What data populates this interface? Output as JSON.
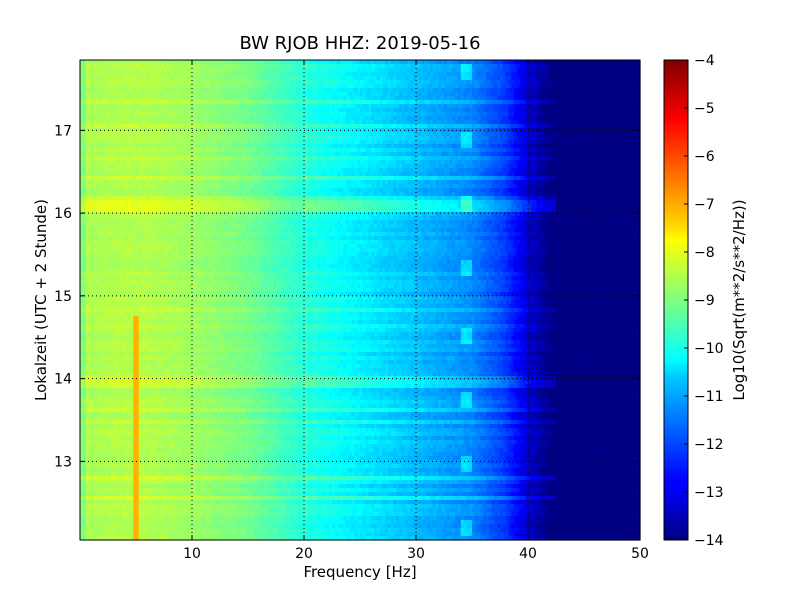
{
  "chart_data": {
    "type": "heatmap",
    "title": "BW RJOB HHZ: 2019-05-16",
    "xlabel": "Frequency [Hz]",
    "ylabel": "Lokalzeit (UTC + 2 Stunde)",
    "xlim": [
      0,
      50
    ],
    "ylim": [
      17.85,
      12.05
    ],
    "y_inverted": true,
    "xticks": [
      10,
      20,
      30,
      40,
      50
    ],
    "yticks": [
      13,
      14,
      15,
      16,
      17
    ],
    "grid": true,
    "colormap": "jet",
    "colorbar": {
      "label": "Log10(Sqrt(m**2/s**2/Hz))",
      "range": [
        -14,
        -4
      ],
      "ticks": [
        -4,
        -5,
        -6,
        -7,
        -8,
        -9,
        -10,
        -11,
        -12,
        -13,
        -14
      ]
    },
    "spectrum_profile": {
      "frequency_hz": [
        0,
        1,
        3,
        6,
        10,
        15,
        20,
        25,
        30,
        35,
        38,
        40,
        41,
        42,
        50
      ],
      "log10_amplitude": [
        -8.3,
        -8.6,
        -8.5,
        -8.5,
        -8.7,
        -9.1,
        -9.9,
        -10.4,
        -10.9,
        -11.4,
        -12.2,
        -13.2,
        -13.6,
        -14.0,
        -14.0
      ]
    },
    "features": [
      {
        "kind": "narrowband-line",
        "frequency_hz": 5.0,
        "time_range": [
          12.05,
          14.75
        ],
        "log10_amplitude": -7.0
      },
      {
        "kind": "broadband-event",
        "time": 16.1,
        "freq_range": [
          0,
          43
        ],
        "log10_amplitude_offset": 0.8
      },
      {
        "kind": "periodic-tone",
        "frequency_hz": 34.5,
        "times": [
          12.2,
          12.95,
          13.75,
          14.5,
          15.35,
          16.1,
          16.9,
          17.7
        ]
      }
    ]
  }
}
